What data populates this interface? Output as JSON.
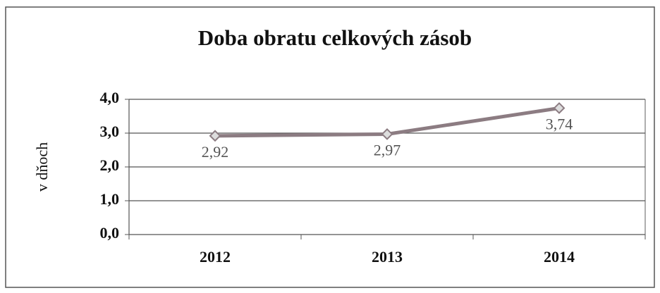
{
  "chart_data": {
    "type": "line",
    "title": "Doba obratu celkových zásob",
    "y_label": "v dňoch",
    "categories": [
      "2012",
      "2013",
      "2014"
    ],
    "values": [
      2.92,
      2.97,
      3.74
    ],
    "value_labels": [
      "2,92",
      "2,97",
      "3,74"
    ],
    "color": "#8c7c82",
    "ylim": [
      0,
      4
    ],
    "yticks": [
      {
        "value": 0,
        "label": "0,0"
      },
      {
        "value": 1,
        "label": "1,0"
      },
      {
        "value": 2,
        "label": "2,0"
      },
      {
        "value": 3,
        "label": "3,0"
      },
      {
        "value": 4,
        "label": "4,0"
      }
    ],
    "grid": true
  }
}
